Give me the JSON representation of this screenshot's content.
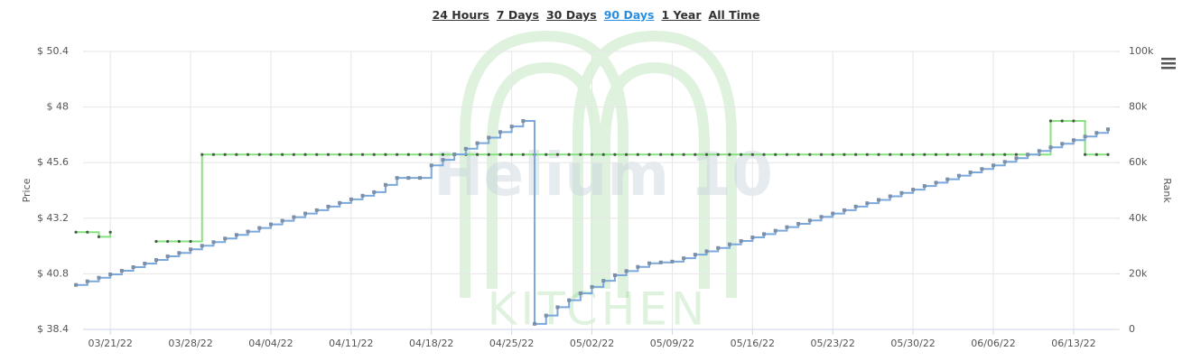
{
  "range_buttons": [
    "24 Hours",
    "7 Days",
    "30 Days",
    "90 Days",
    "1 Year",
    "All Time"
  ],
  "active_range_index": 3,
  "watermark": {
    "brand": "Helium 10",
    "label": "KITCHEN"
  },
  "chart_data": {
    "type": "step-line",
    "ylabel": "Price",
    "y2label": "Rank",
    "grid": true,
    "x": [
      "2022-03-18",
      "2022-03-19",
      "2022-03-20",
      "2022-03-21",
      "2022-03-22",
      "2022-03-23",
      "2022-03-24",
      "2022-03-25",
      "2022-03-26",
      "2022-03-27",
      "2022-03-28",
      "2022-03-29",
      "2022-03-30",
      "2022-03-31",
      "2022-04-01",
      "2022-04-02",
      "2022-04-03",
      "2022-04-04",
      "2022-04-05",
      "2022-04-06",
      "2022-04-07",
      "2022-04-08",
      "2022-04-09",
      "2022-04-10",
      "2022-04-11",
      "2022-04-12",
      "2022-04-13",
      "2022-04-14",
      "2022-04-15",
      "2022-04-16",
      "2022-04-17",
      "2022-04-18",
      "2022-04-19",
      "2022-04-20",
      "2022-04-21",
      "2022-04-22",
      "2022-04-23",
      "2022-04-24",
      "2022-04-25",
      "2022-04-26",
      "2022-04-27",
      "2022-04-28",
      "2022-04-29",
      "2022-04-30",
      "2022-05-01",
      "2022-05-02",
      "2022-05-03",
      "2022-05-04",
      "2022-05-05",
      "2022-05-06",
      "2022-05-07",
      "2022-05-08",
      "2022-05-09",
      "2022-05-10",
      "2022-05-11",
      "2022-05-12",
      "2022-05-13",
      "2022-05-14",
      "2022-05-15",
      "2022-05-16",
      "2022-05-17",
      "2022-05-18",
      "2022-05-19",
      "2022-05-20",
      "2022-05-21",
      "2022-05-22",
      "2022-05-23",
      "2022-05-24",
      "2022-05-25",
      "2022-05-26",
      "2022-05-27",
      "2022-05-28",
      "2022-05-29",
      "2022-05-30",
      "2022-05-31",
      "2022-06-01",
      "2022-06-02",
      "2022-06-03",
      "2022-06-04",
      "2022-06-05",
      "2022-06-06",
      "2022-06-07",
      "2022-06-08",
      "2022-06-09",
      "2022-06-10",
      "2022-06-11",
      "2022-06-12",
      "2022-06-13",
      "2022-06-14",
      "2022-06-15",
      "2022-06-16"
    ],
    "xlim": [
      "2022-03-18T15:00",
      "2022-06-16T17:00"
    ],
    "xticks": [
      {
        "value": "2022-03-21",
        "label": "03/21/22"
      },
      {
        "value": "2022-03-28",
        "label": "03/28/22"
      },
      {
        "value": "2022-04-04",
        "label": "04/04/22"
      },
      {
        "value": "2022-04-11",
        "label": "04/11/22"
      },
      {
        "value": "2022-04-18",
        "label": "04/18/22"
      },
      {
        "value": "2022-04-25",
        "label": "04/25/22"
      },
      {
        "value": "2022-05-02",
        "label": "05/02/22"
      },
      {
        "value": "2022-05-09",
        "label": "05/09/22"
      },
      {
        "value": "2022-05-16",
        "label": "05/16/22"
      },
      {
        "value": "2022-05-23",
        "label": "05/23/22"
      },
      {
        "value": "2022-05-30",
        "label": "05/30/22"
      },
      {
        "value": "2022-06-06",
        "label": "06/06/22"
      },
      {
        "value": "2022-06-13",
        "label": "06/13/22"
      }
    ],
    "ylim": [
      38.4,
      50.4
    ],
    "yticks": [
      {
        "value": 38.4,
        "label": "$ 38.4"
      },
      {
        "value": 40.8,
        "label": "$ 40.8"
      },
      {
        "value": 43.2,
        "label": "$ 43.2"
      },
      {
        "value": 45.6,
        "label": "$ 45.6"
      },
      {
        "value": 48,
        "label": "$ 48"
      },
      {
        "value": 50.4,
        "label": "$ 50.4"
      }
    ],
    "y2lim": [
      0,
      100000
    ],
    "y2ticks": [
      0,
      {
        "value": 20000,
        "label": "20k"
      },
      {
        "value": 40000,
        "label": "40k"
      },
      {
        "value": 60000,
        "label": "60k"
      },
      {
        "value": 80000,
        "label": "80k"
      },
      {
        "value": 100000,
        "label": "100k"
      }
    ],
    "series": [
      {
        "color": "#86e27e",
        "marker_color": "#4a5a4a",
        "values": [
          42.6,
          42.6,
          42.4,
          42.6,
          null,
          null,
          null,
          42.2,
          42.2,
          42.2,
          42.2,
          45.95,
          45.95,
          45.95,
          45.95,
          45.95,
          45.95,
          45.95,
          45.95,
          45.95,
          45.95,
          45.95,
          45.95,
          45.95,
          45.95,
          45.95,
          45.95,
          45.95,
          45.95,
          45.95,
          45.95,
          45.95,
          45.95,
          45.95,
          45.95,
          45.95,
          45.95,
          45.95,
          45.95,
          45.95,
          45.95,
          45.95,
          45.95,
          45.95,
          45.95,
          45.95,
          45.95,
          45.95,
          45.95,
          45.95,
          45.95,
          45.95,
          45.95,
          45.95,
          45.95,
          45.95,
          45.95,
          45.95,
          45.95,
          45.95,
          45.95,
          45.95,
          45.95,
          45.95,
          45.95,
          45.95,
          45.95,
          45.95,
          45.95,
          45.95,
          45.95,
          45.95,
          45.95,
          45.95,
          45.95,
          45.95,
          45.95,
          45.95,
          45.95,
          45.95,
          45.95,
          45.95,
          45.95,
          45.95,
          45.95,
          47.4,
          47.4,
          47.4,
          45.95,
          45.95,
          45.95
        ]
      },
      {
        "color": "#7aa8dc",
        "marker_color": "#7d8fa6",
        "axis": "y2",
        "values": [
          16000,
          17300,
          18600,
          19800,
          21100,
          22400,
          23700,
          25000,
          26300,
          27500,
          28800,
          30100,
          31400,
          32700,
          34000,
          35200,
          36500,
          37800,
          39100,
          40400,
          41700,
          42900,
          44200,
          45500,
          46800,
          48100,
          49400,
          52000,
          54500,
          54500,
          54500,
          59000,
          61000,
          63000,
          65000,
          67000,
          69000,
          71000,
          73000,
          75000,
          2000,
          5000,
          8000,
          10500,
          13000,
          15300,
          17500,
          19500,
          21000,
          22500,
          23800,
          24100,
          24400,
          25600,
          26900,
          28100,
          29300,
          30600,
          31800,
          33100,
          34300,
          35500,
          36800,
          38000,
          39200,
          40500,
          41700,
          42900,
          44200,
          45400,
          46600,
          47900,
          49100,
          50300,
          51600,
          52800,
          54000,
          55300,
          56500,
          57700,
          59000,
          60300,
          61600,
          62900,
          64200,
          65500,
          66800,
          68100,
          69400,
          70700,
          72000
        ]
      }
    ]
  }
}
